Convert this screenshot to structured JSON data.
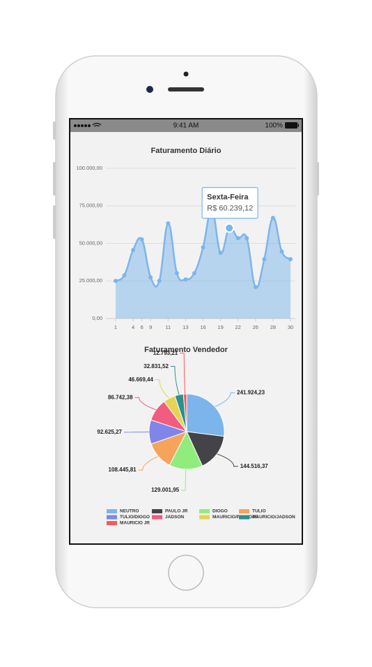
{
  "status_bar": {
    "time": "9:41 AM",
    "battery": "100%"
  },
  "chart_data": [
    {
      "type": "line",
      "title": "Faturamento Diário",
      "color": "#7cb5ec",
      "grid": true,
      "categories": [
        "1",
        null,
        "4",
        "6",
        "9",
        null,
        "11",
        null,
        "13",
        null,
        "16",
        null,
        "19",
        null,
        "22",
        null,
        "26",
        null,
        "28",
        null,
        "30"
      ],
      "values": [
        25000,
        28800,
        45600,
        52600,
        27400,
        25100,
        63300,
        30200,
        26000,
        30200,
        47400,
        72500,
        43700,
        60239.12,
        53500,
        53500,
        20900,
        39500,
        67000,
        44600,
        39500
      ],
      "value_labels": [
        null,
        null,
        null,
        null,
        null,
        null,
        null,
        null,
        null,
        null,
        null,
        null,
        null,
        "R$ 60.239,12",
        null,
        null,
        null,
        null,
        null,
        null,
        null
      ],
      "tooltip_title": "Sexta-Feira",
      "ylim": [
        0,
        100000
      ],
      "yticks": [
        {
          "value": 0,
          "label": "0,00"
        },
        {
          "value": 25000,
          "label": "25.000,00"
        },
        {
          "value": 50000,
          "label": "50.000,00"
        },
        {
          "value": 75000,
          "label": "75.000,00"
        },
        {
          "value": 100000,
          "label": "100.000,00"
        }
      ]
    },
    {
      "type": "pie",
      "title": "Faturamento Vendedor",
      "categories": [
        "NEUTRO",
        "PAULO JR",
        "DIOGO",
        "TULIO",
        "TULIO/DIOGO",
        "JADSON",
        "MAURICIO/PAULOJR",
        "MAURICIO/JADSON",
        "MAURICIO JR"
      ],
      "values": [
        241924.23,
        144516.37,
        129001.95,
        108445.81,
        92625.27,
        86742.38,
        46669.44,
        32831.52,
        12793.21
      ],
      "value_labels": [
        "241.924,23",
        "144.516,37",
        "129.001,95",
        "108.445,81",
        "92.625,27",
        "86.742,38",
        "46.669,44",
        "32.831,52",
        "12.793,21"
      ],
      "colors": [
        "#7cb5ec",
        "#434348",
        "#90ed7d",
        "#f7a35c",
        "#8085e9",
        "#f15c80",
        "#e4d354",
        "#2b908f",
        "#f45b5b"
      ]
    }
  ]
}
